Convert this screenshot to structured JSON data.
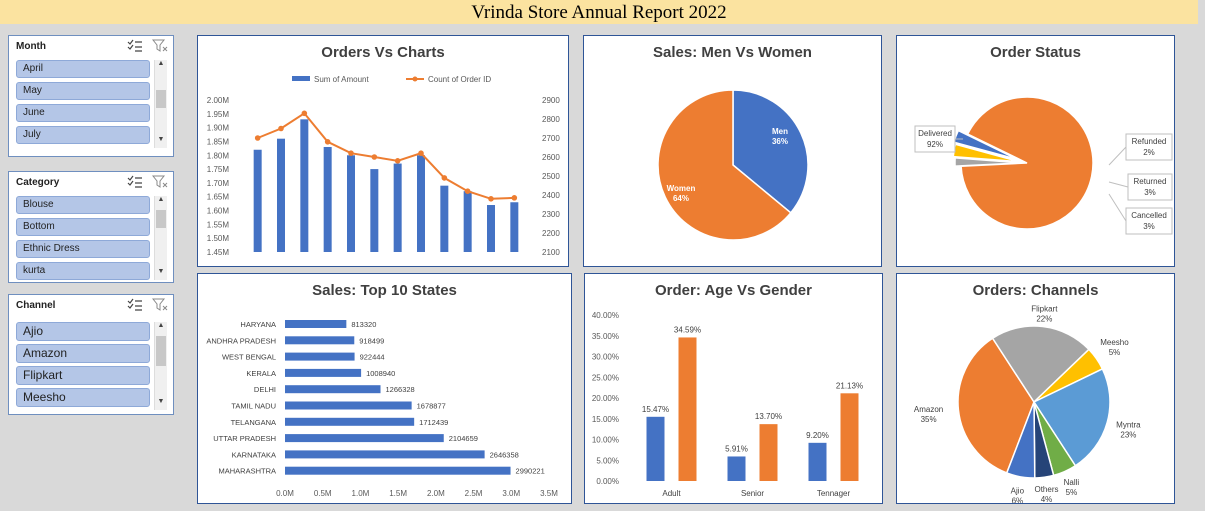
{
  "banner": {
    "title": "Vrinda Store Annual Report 2022"
  },
  "slicers": {
    "month": {
      "title": "Month",
      "items": [
        "April",
        "May",
        "June",
        "July"
      ]
    },
    "category": {
      "title": "Category",
      "items": [
        "Blouse",
        "Bottom",
        "Ethnic Dress",
        "kurta"
      ]
    },
    "channel": {
      "title": "Channel",
      "items": [
        "Ajio",
        "Amazon",
        "Flipkart",
        "Meesho"
      ]
    }
  },
  "charts": {
    "orders_vs_charts": {
      "title": "Orders Vs Charts",
      "legend": [
        "Sum of Amount",
        "Count of Order ID"
      ],
      "left_ticks": [
        "2.00M",
        "1.95M",
        "1.90M",
        "1.85M",
        "1.80M",
        "1.75M",
        "1.70M",
        "1.65M",
        "1.60M",
        "1.55M",
        "1.50M",
        "1.45M"
      ],
      "right_ticks": [
        "2900",
        "2800",
        "2700",
        "2600",
        "2500",
        "2400",
        "2300",
        "2200",
        "2100"
      ]
    },
    "men_women": {
      "title": "Sales: Men Vs Women",
      "labels": [
        "Men",
        "36%",
        "Women",
        "64%"
      ]
    },
    "order_status": {
      "title": "Order Status",
      "labels": [
        "Delivered",
        "92%",
        "Refunded",
        "2%",
        "Returned",
        "3%",
        "Cancelled",
        "3%"
      ]
    },
    "top_states": {
      "title": "Sales: Top 10 States",
      "x_ticks": [
        "0.0M",
        "0.5M",
        "1.0M",
        "1.5M",
        "2.0M",
        "2.5M",
        "3.0M",
        "3.5M"
      ]
    },
    "age_gender": {
      "title": "Order: Age Vs Gender",
      "y_ticks": [
        "40.00%",
        "35.00%",
        "30.00%",
        "25.00%",
        "20.00%",
        "15.00%",
        "10.00%",
        "5.00%",
        "0.00%"
      ]
    },
    "channels": {
      "title": "Orders: Channels"
    }
  },
  "chart_data": [
    {
      "type": "bar+line",
      "title": "Orders Vs Charts",
      "series": [
        {
          "name": "Sum of Amount",
          "type": "bar",
          "axis": "left",
          "values": [
            1.82,
            1.86,
            1.93,
            1.83,
            1.8,
            1.75,
            1.77,
            1.8,
            1.69,
            1.67,
            1.62,
            1.63
          ]
        },
        {
          "name": "Count of Order ID",
          "type": "line",
          "axis": "right",
          "values": [
            2700,
            2750,
            2830,
            2680,
            2620,
            2600,
            2580,
            2620,
            2490,
            2420,
            2380,
            2385
          ]
        }
      ],
      "ylim_left": [
        1.45,
        2.0
      ],
      "ylim_right": [
        2100,
        2900
      ]
    },
    {
      "type": "pie",
      "title": "Sales: Men Vs Women",
      "categories": [
        "Men",
        "Women"
      ],
      "values": [
        36,
        64
      ],
      "colors": [
        "#4472c4",
        "#ed7d31"
      ]
    },
    {
      "type": "pie",
      "title": "Order Status",
      "categories": [
        "Delivered",
        "Refunded",
        "Returned",
        "Cancelled"
      ],
      "values": [
        92,
        2,
        3,
        3
      ],
      "colors": [
        "#ed7d31",
        "#a5a5a5",
        "#ffc000",
        "#4472c4"
      ]
    },
    {
      "type": "bar",
      "orientation": "horizontal",
      "title": "Sales: Top 10 States",
      "categories": [
        "HARYANA",
        "ANDHRA PRADESH",
        "WEST BENGAL",
        "KERALA",
        "DELHI",
        "TAMIL NADU",
        "TELANGANA",
        "UTTAR PRADESH",
        "KARNATAKA",
        "MAHARASHTRA"
      ],
      "values": [
        813320,
        918499,
        922444,
        1008940,
        1266328,
        1678877,
        1712439,
        2104659,
        2646358,
        2990221
      ],
      "xlim": [
        0,
        3500000
      ]
    },
    {
      "type": "bar",
      "title": "Order: Age Vs Gender",
      "categories": [
        "Adult",
        "Senior",
        "Tennager"
      ],
      "series": [
        {
          "values": [
            15.47,
            5.91,
            9.2
          ],
          "labels": [
            "15.47%",
            "5.91%",
            "9.20%"
          ],
          "color": "#4472c4"
        },
        {
          "values": [
            34.59,
            13.7,
            21.13
          ],
          "labels": [
            "34.59%",
            "13.70%",
            "21.13%"
          ],
          "color": "#ed7d31"
        }
      ],
      "ylim": [
        0,
        40
      ]
    },
    {
      "type": "pie",
      "title": "Orders: Channels",
      "categories": [
        "Amazon",
        "Flipkart",
        "Meesho",
        "Myntra",
        "Nalli",
        "Others",
        "Ajio"
      ],
      "values": [
        35,
        22,
        5,
        23,
        5,
        4,
        6
      ],
      "colors": [
        "#ed7d31",
        "#a5a5a5",
        "#ffc000",
        "#5b9bd5",
        "#70ad47",
        "#264478",
        "#4472c4"
      ]
    }
  ]
}
